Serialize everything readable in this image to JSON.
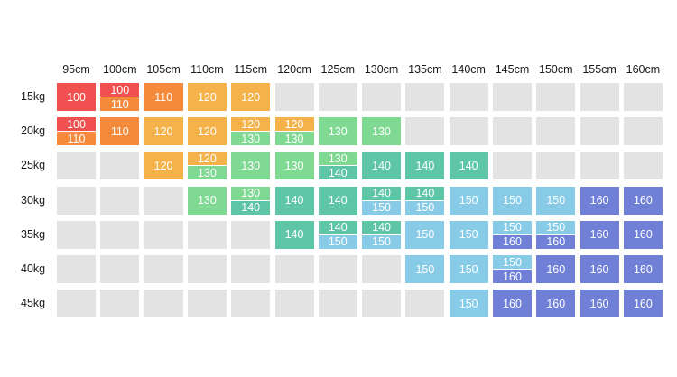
{
  "chart_data": {
    "type": "table",
    "columns": [
      "95cm",
      "100cm",
      "105cm",
      "110cm",
      "115cm",
      "120cm",
      "125cm",
      "130cm",
      "135cm",
      "140cm",
      "145cm",
      "150cm",
      "155cm",
      "160cm"
    ],
    "rows": [
      "15kg",
      "20kg",
      "25kg",
      "30kg",
      "35kg",
      "40kg",
      "45kg"
    ],
    "cells": [
      [
        [
          "100"
        ],
        [
          "100",
          "110"
        ],
        [
          "110"
        ],
        [
          "120"
        ],
        [
          "120"
        ],
        [],
        [],
        [],
        [],
        [],
        [],
        [],
        [],
        []
      ],
      [
        [
          "100",
          "110"
        ],
        [
          "110"
        ],
        [
          "120"
        ],
        [
          "120"
        ],
        [
          "120",
          "130"
        ],
        [
          "120",
          "130"
        ],
        [
          "130"
        ],
        [
          "130"
        ],
        [],
        [],
        [],
        [],
        [],
        []
      ],
      [
        [],
        [],
        [
          "120"
        ],
        [
          "120",
          "130"
        ],
        [
          "130"
        ],
        [
          "130"
        ],
        [
          "130",
          "140"
        ],
        [
          "140"
        ],
        [
          "140"
        ],
        [
          "140"
        ],
        [],
        [],
        [],
        []
      ],
      [
        [],
        [],
        [],
        [
          "130"
        ],
        [
          "130",
          "140"
        ],
        [
          "140"
        ],
        [
          "140"
        ],
        [
          "140",
          "150"
        ],
        [
          "140",
          "150"
        ],
        [
          "150"
        ],
        [
          "150"
        ],
        [
          "150"
        ],
        [
          "160"
        ],
        [
          "160"
        ]
      ],
      [
        [],
        [],
        [],
        [],
        [],
        [
          "140"
        ],
        [
          "140",
          "150"
        ],
        [
          "140",
          "150"
        ],
        [
          "150"
        ],
        [
          "150"
        ],
        [
          "150",
          "160"
        ],
        [
          "150",
          "160"
        ],
        [
          "160"
        ],
        [
          "160"
        ]
      ],
      [
        [],
        [],
        [],
        [],
        [],
        [],
        [],
        [],
        [
          "150"
        ],
        [
          "150"
        ],
        [
          "150",
          "160"
        ],
        [
          "160"
        ],
        [
          "160"
        ],
        [
          "160"
        ]
      ],
      [
        [],
        [],
        [],
        [],
        [],
        [],
        [],
        [],
        [],
        [
          "150"
        ],
        [
          "160"
        ],
        [
          "160"
        ],
        [
          "160"
        ],
        [
          "160"
        ]
      ]
    ],
    "size_colors": {
      "100": "#f05050",
      "110": "#f58a3c",
      "120": "#f5b14a",
      "130": "#7fd992",
      "140": "#5ec6a6",
      "150": "#88cbe6",
      "160": "#6f80d6"
    },
    "empty_color": "#e3e3e3"
  }
}
